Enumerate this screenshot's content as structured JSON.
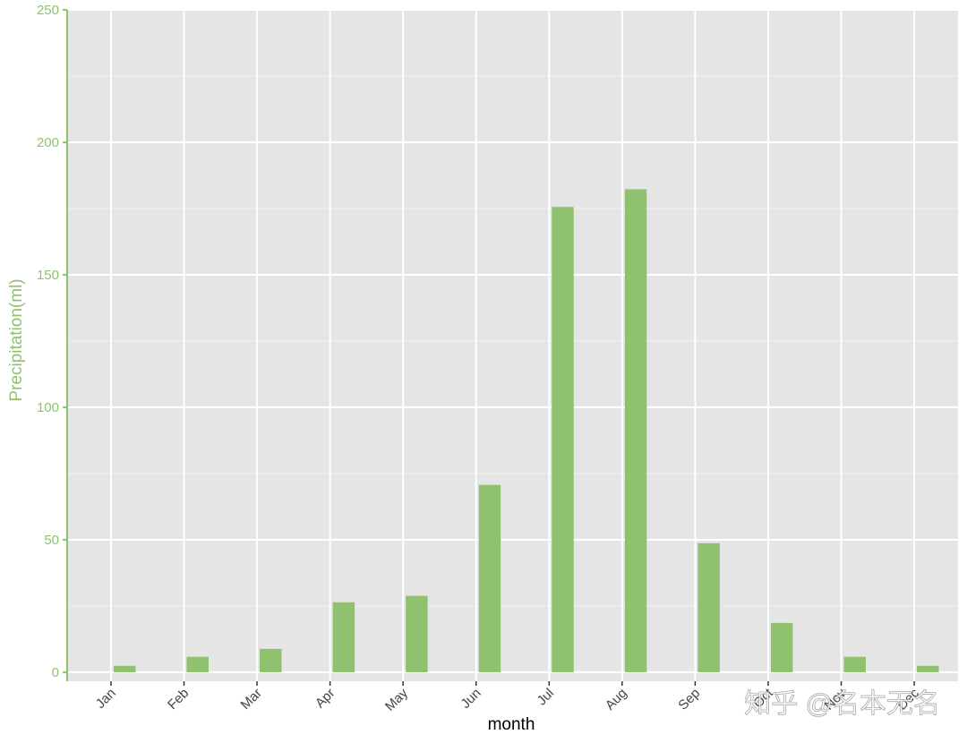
{
  "chart_data": {
    "type": "bar",
    "x_label": "month",
    "y_label": "Precipitation(ml)",
    "categories": [
      "Jan",
      "Feb",
      "Mar",
      "Apr",
      "May",
      "Jun",
      "Jul",
      "Aug",
      "Sep",
      "Oct",
      "Nov",
      "Dec"
    ],
    "values": [
      2.4,
      5.8,
      8.8,
      26.4,
      28.8,
      70.7,
      175.6,
      182.3,
      48.7,
      18.6,
      5.8,
      2.4
    ],
    "color": "#8fc16f",
    "ylim": [
      -3.4,
      250
    ],
    "yticks": [
      0,
      50,
      100,
      150,
      200,
      250
    ],
    "minor_yticks": [
      25,
      75,
      125,
      175,
      225
    ],
    "grid": true,
    "watermark": "知乎 @名本无名"
  }
}
